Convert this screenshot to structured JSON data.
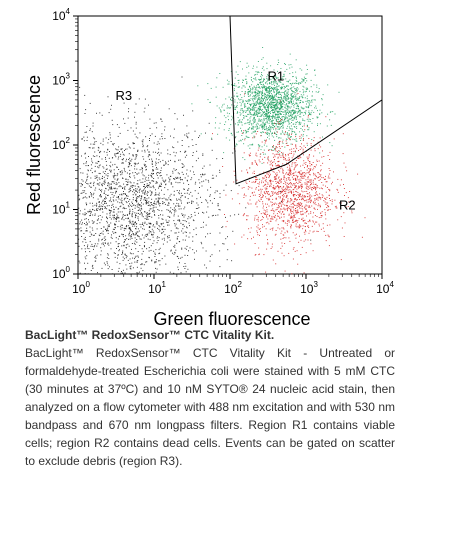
{
  "chart_data": {
    "type": "scatter",
    "xlabel": "Green fluorescence",
    "ylabel": "Red fluorescence",
    "xscale": "log",
    "yscale": "log",
    "xlim": [
      1,
      10000
    ],
    "ylim": [
      1,
      10000
    ],
    "xticks": [
      {
        "base": "10",
        "exp": "0"
      },
      {
        "base": "10",
        "exp": "1"
      },
      {
        "base": "10",
        "exp": "2"
      },
      {
        "base": "10",
        "exp": "3"
      },
      {
        "base": "10",
        "exp": "4"
      }
    ],
    "yticks": [
      {
        "base": "10",
        "exp": "0"
      },
      {
        "base": "10",
        "exp": "1"
      },
      {
        "base": "10",
        "exp": "2"
      },
      {
        "base": "10",
        "exp": "3"
      },
      {
        "base": "10",
        "exp": "4"
      }
    ],
    "gates": [
      {
        "name": "R1",
        "label_at": [
          400,
          1000
        ],
        "boundary": [
          [
            100,
            10000
          ],
          [
            120,
            25
          ],
          [
            550,
            50
          ],
          [
            10000,
            500
          ]
        ]
      },
      {
        "name": "R2",
        "label_at": [
          3500,
          10
        ]
      },
      {
        "name": "R3",
        "label_at": [
          4,
          500
        ]
      }
    ],
    "populations": [
      {
        "name": "R1",
        "color": "#1a9e5c",
        "count": 1800,
        "cx": 350,
        "cy": 400,
        "sx": 0.28,
        "sy": 0.28
      },
      {
        "name": "R2",
        "color": "#d42020",
        "count": 1400,
        "cx": 600,
        "cy": 20,
        "sx": 0.3,
        "sy": 0.42
      },
      {
        "name": "R3",
        "color": "#111111",
        "count": 2200,
        "cx": 5,
        "cy": 12,
        "sx": 0.55,
        "sy": 0.6
      }
    ]
  },
  "caption": {
    "title": "BacLight™ RedoxSensor™ CTC Vitality Kit.",
    "body": "BacLight™ RedoxSensor™ CTC Vitality Kit - Untreated or formaldehyde-treated Escherichia coli were stained with 5 mM CTC (30 minutes at 37ºC) and 10 nM SYTO® 24 nucleic acid stain, then analyzed on a flow cytometer with 488 nm excitation and with 530 nm bandpass and 670 nm longpass filters. Region R1 contains viable cells; region R2 contains dead cells. Events can be gated on scatter to exclude debris (region R3)."
  }
}
